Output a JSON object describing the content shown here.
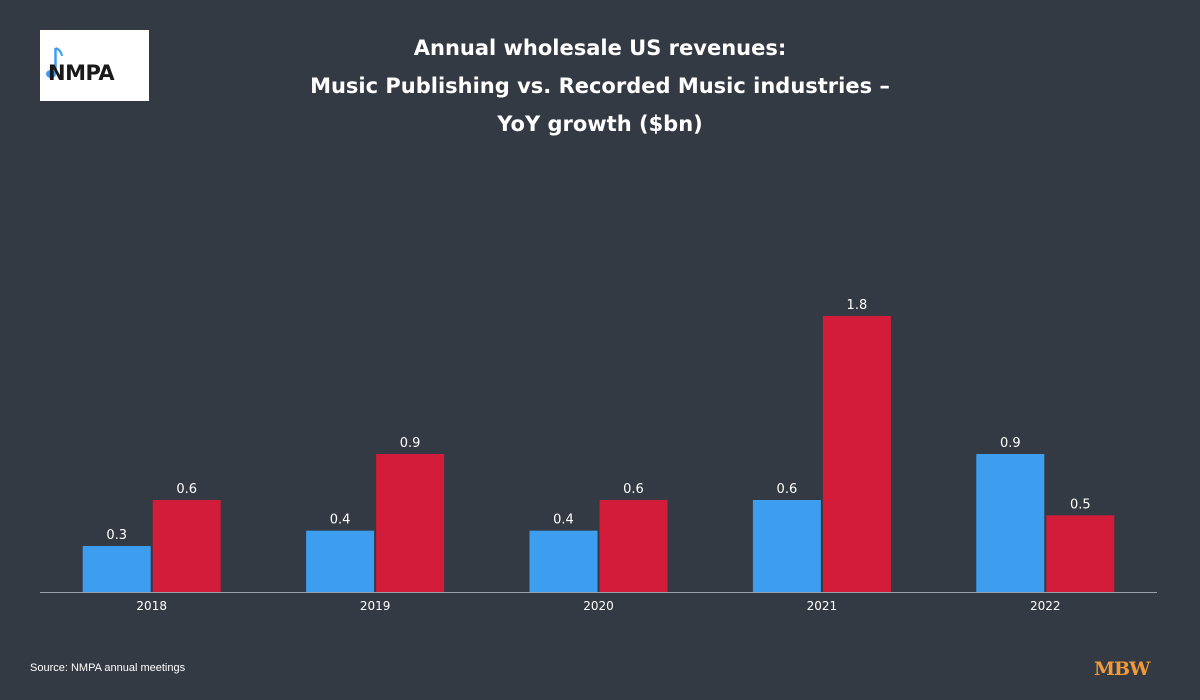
{
  "logo": {
    "text": "NMPA"
  },
  "title_lines": [
    "Annual wholesale US revenues:",
    "Music Publishing vs. Recorded Music industries –",
    "YoY growth ($bn)"
  ],
  "source": "Source: NMPA annual meetings",
  "brand": "MBW",
  "colors": {
    "background": "#343a43",
    "music_publishing": "#3d9ef0",
    "recorded_music": "#d21c39",
    "brand": "#f29a38"
  },
  "chart_data": {
    "type": "bar",
    "categories": [
      "2018",
      "2019",
      "2020",
      "2021",
      "2022"
    ],
    "series": [
      {
        "values": [
          0.3,
          0.4,
          0.4,
          0.6,
          0.9
        ],
        "color": "#3d9ef0"
      },
      {
        "values": [
          0.6,
          0.9,
          0.6,
          1.8,
          0.5
        ],
        "color": "#d21c39"
      }
    ],
    "data_labels": [
      [
        "0.3",
        "0.4",
        "0.4",
        "0.6",
        "0.9"
      ],
      [
        "0.6",
        "0.9",
        "0.6",
        "1.8",
        "0.5"
      ]
    ],
    "ylim": [
      0,
      1.8
    ],
    "grid": false,
    "legend": "none"
  }
}
